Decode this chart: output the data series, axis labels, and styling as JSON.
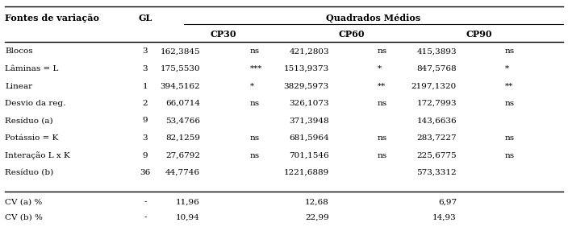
{
  "col_header_1": "Fontes de variação",
  "col_header_2": "GL",
  "col_header_3": "Quadrados Médios",
  "sub_headers": [
    "CP30",
    "CP60",
    "CP90"
  ],
  "rows": [
    [
      "Blocos",
      "3",
      "162,3845",
      "ns",
      "421,2803",
      "ns",
      "415,3893",
      "ns"
    ],
    [
      "Lâminas = L",
      "3",
      "175,5530",
      "***",
      "1513,9373",
      "*",
      "847,5768",
      "*"
    ],
    [
      "Linear",
      "1",
      "394,5162",
      "*",
      "3829,5973",
      "**",
      "2197,1320",
      "**"
    ],
    [
      "Desvio da reg.",
      "2",
      "66,0714",
      "ns",
      "326,1073",
      "ns",
      "172,7993",
      "ns"
    ],
    [
      "Resíduo (a)",
      "9",
      "53,4766",
      "",
      "371,3948",
      "",
      "143,6636",
      ""
    ],
    [
      "Potássio = K",
      "3",
      "82,1259",
      "ns",
      "681,5964",
      "ns",
      "283,7227",
      "ns"
    ],
    [
      "Interação L x K",
      "9",
      "27,6792",
      "ns",
      "701,1546",
      "ns",
      "225,6775",
      "ns"
    ],
    [
      "Resíduo (b)",
      "36",
      "44,7746",
      "",
      "1221,6889",
      "",
      "573,3312",
      ""
    ]
  ],
  "cv_rows": [
    [
      "CV (a) %",
      "-",
      "11,96",
      "12,68",
      "6,97"
    ],
    [
      "CV (b) %",
      "-",
      "10,94",
      "22,99",
      "14,93"
    ]
  ],
  "background_color": "#ffffff",
  "font_size": 7.5,
  "header_font_size": 8.0
}
